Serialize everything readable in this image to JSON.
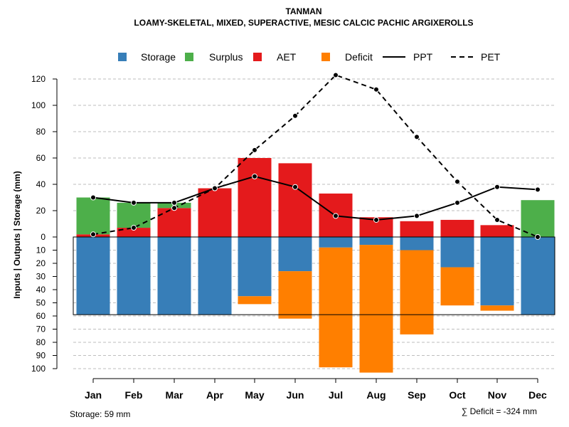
{
  "chart_data": {
    "type": "bar",
    "title": "TANMAN",
    "subtitle": "LOAMY-SKELETAL, MIXED, SUPERACTIVE, MESIC CALCIC PACHIC ARGIXEROLLS",
    "ylabel": "Inputs | Outputs | Storage    (mm)",
    "months": [
      "Jan",
      "Feb",
      "Mar",
      "Apr",
      "May",
      "Jun",
      "Jul",
      "Aug",
      "Sep",
      "Oct",
      "Nov",
      "Dec"
    ],
    "y_upper_ticks": [
      "0",
      "20",
      "40",
      "60",
      "80",
      "100",
      "120"
    ],
    "y_lower_ticks": [
      "10",
      "20",
      "30",
      "40",
      "50",
      "60",
      "70",
      "80",
      "90",
      "100"
    ],
    "ylim_upper": [
      0,
      120
    ],
    "ylim_lower": [
      0,
      100
    ],
    "storage_capacity": 59,
    "series": [
      {
        "name": "AET",
        "values": [
          2,
          7,
          22,
          37,
          60,
          56,
          33,
          15,
          12,
          13,
          9,
          0
        ]
      },
      {
        "name": "Surplus",
        "values": [
          28,
          19,
          4,
          0,
          0,
          0,
          0,
          0,
          0,
          0,
          0,
          28
        ]
      },
      {
        "name": "Storage",
        "values": [
          59,
          59,
          59,
          59,
          45,
          26,
          8,
          6,
          10,
          23,
          52,
          59
        ]
      },
      {
        "name": "Deficit",
        "values": [
          0,
          0,
          0,
          0,
          6,
          36,
          91,
          97,
          64,
          29,
          4,
          0
        ]
      },
      {
        "name": "PPT",
        "values": [
          30,
          26,
          26,
          37,
          46,
          38,
          16,
          13,
          16,
          26,
          38,
          36
        ]
      },
      {
        "name": "PET",
        "values": [
          2,
          7,
          22,
          37,
          66,
          92,
          123,
          112,
          76,
          42,
          13,
          0
        ]
      }
    ],
    "legend": [
      {
        "label": "Storage",
        "color": "#377EB8",
        "kind": "box"
      },
      {
        "label": "Surplus",
        "color": "#4DAF4A",
        "kind": "box"
      },
      {
        "label": "AET",
        "color": "#E41A1C",
        "kind": "box"
      },
      {
        "label": "Deficit",
        "color": "#FF7F00",
        "kind": "box"
      },
      {
        "label": "PPT",
        "color": "#000000",
        "kind": "line"
      },
      {
        "label": "PET",
        "color": "#000000",
        "kind": "dash"
      }
    ],
    "storage_note": "Storage: 59 mm",
    "deficit_note": "∑ Deficit = -324 mm"
  },
  "colors": {
    "storage": "#377EB8",
    "surplus": "#4DAF4A",
    "aet": "#E41A1C",
    "deficit": "#FF7F00",
    "grid": "#BEBEBE"
  }
}
